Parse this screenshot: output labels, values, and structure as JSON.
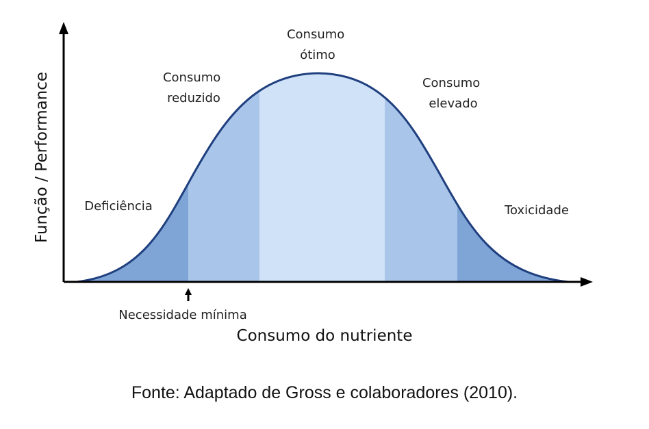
{
  "diagram": {
    "y_axis_title": "Função / Performance",
    "x_axis_title": "Consumo do nutriente",
    "marker_label": "Necessidade mínima",
    "zones": [
      {
        "id": "deficiencia",
        "label": "Deficiência",
        "color": "#7fa4d6"
      },
      {
        "id": "reduzido",
        "label_lines": [
          "Consumo",
          "reduzido"
        ],
        "color": "#a9c6ea"
      },
      {
        "id": "otimo",
        "label_lines": [
          "Consumo",
          "ótimo"
        ],
        "color": "#cfe2f7"
      },
      {
        "id": "elevado",
        "label_lines": [
          "Consumo",
          "elevado"
        ],
        "color": "#a9c6ea"
      },
      {
        "id": "toxicidade",
        "label": "Toxicidade",
        "color": "#7fa4d6"
      }
    ],
    "curve_color": "#1f3f7f"
  },
  "caption": "Fonte: Adaptado de Gross e colaboradores (2010)."
}
